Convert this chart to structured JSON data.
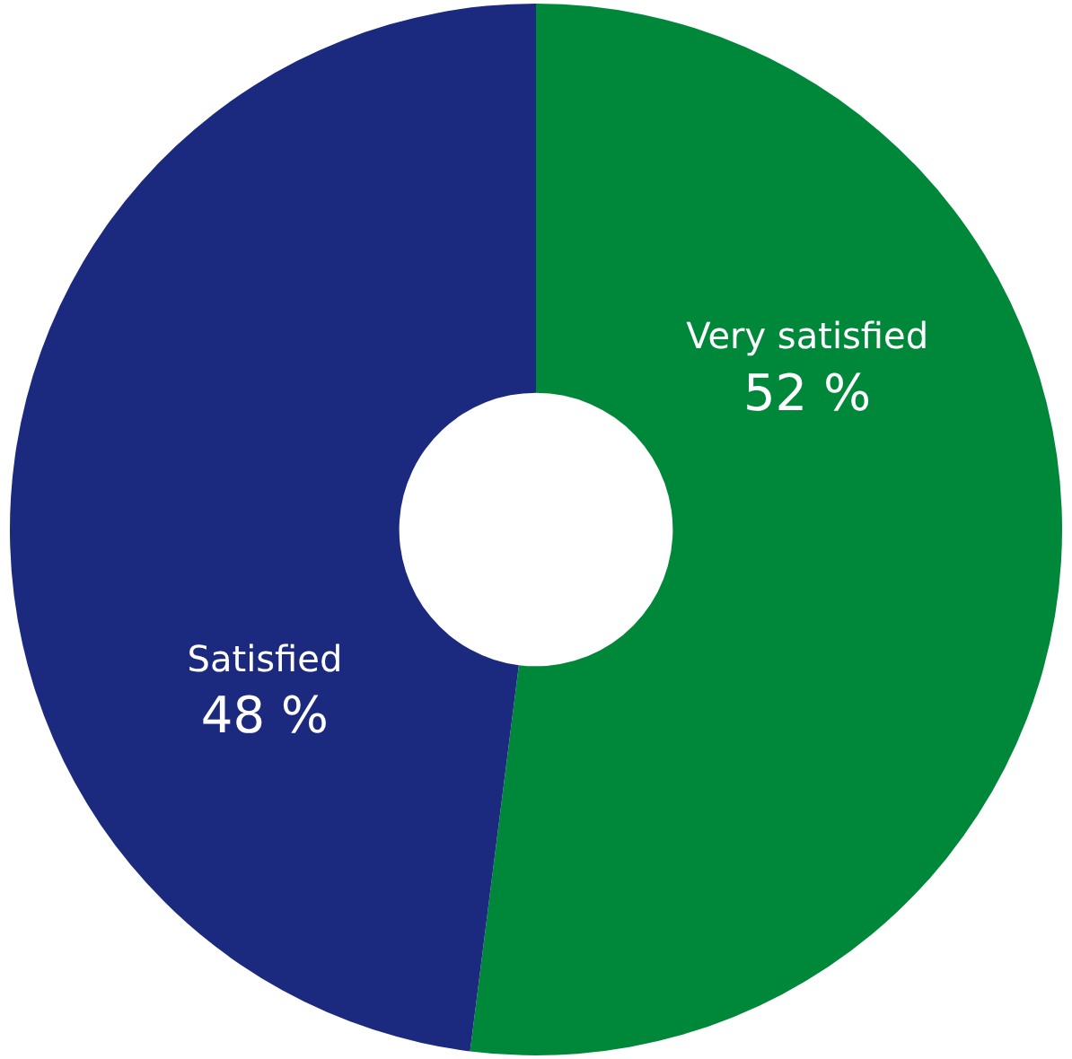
{
  "chart_data": {
    "type": "donut",
    "categories": [
      "Very satisfied",
      "Satisfied"
    ],
    "values": [
      52,
      48
    ],
    "colors": [
      "#00883a",
      "#1b2a7e"
    ],
    "value_labels": [
      "52 %",
      "48 %"
    ],
    "legend": false
  }
}
